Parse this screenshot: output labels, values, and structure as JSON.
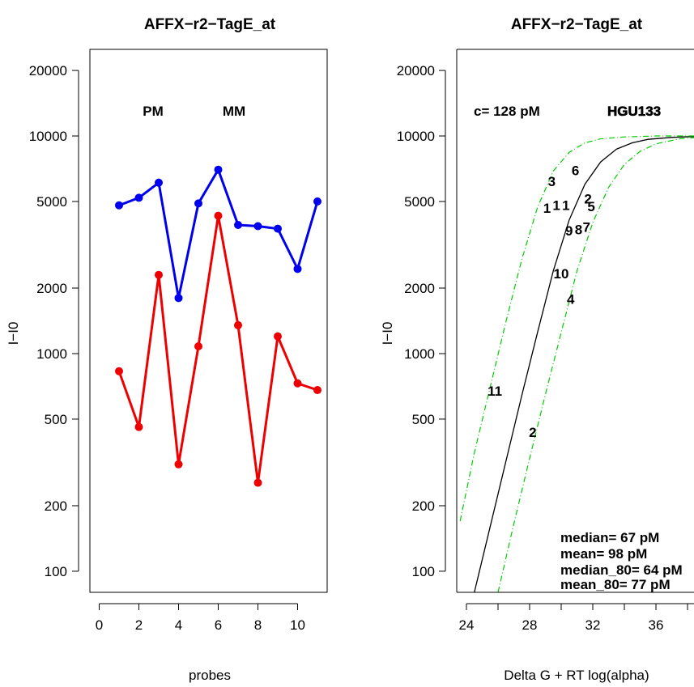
{
  "chart_data": [
    {
      "type": "line",
      "title": "AFFX−r2−TagE_at",
      "xlabel": "probes",
      "ylabel": "I−I0",
      "log_y": true,
      "xlim": [
        0,
        11
      ],
      "xticks": [
        "0",
        "2",
        "4",
        "6",
        "8",
        "10"
      ],
      "ylim": [
        80,
        25000
      ],
      "yticks": [
        "100",
        "200",
        "500",
        "1000",
        "2000",
        "5000",
        "10000",
        "20000"
      ],
      "x": [
        1,
        2,
        3,
        4,
        5,
        6,
        7,
        8,
        9,
        10,
        11
      ],
      "series": [
        {
          "name": "PM",
          "color": "#0000ee",
          "values": [
            4800,
            5200,
            6100,
            1800,
            4900,
            7000,
            3900,
            3850,
            3750,
            2450,
            5000
          ]
        },
        {
          "name": "MM",
          "color": "#ee0000",
          "values": [
            830,
            460,
            2300,
            310,
            1080,
            4300,
            1350,
            255,
            1200,
            730,
            680
          ]
        }
      ],
      "legend": [
        "PM",
        "MM"
      ]
    },
    {
      "type": "scatter",
      "title": "AFFX−r2−TagE_at",
      "xlabel": "Delta G + RT log(alpha)",
      "ylabel": "I−I0",
      "log_y": true,
      "xlim": [
        23.6,
        40
      ],
      "xticks": [
        "24",
        "28",
        "32",
        "36"
      ],
      "ylim": [
        80,
        25000
      ],
      "yticks": [
        "100",
        "200",
        "500",
        "1000",
        "2000",
        "5000",
        "10000",
        "20000"
      ],
      "annotations": {
        "concentration": "c= 128  pM",
        "chip": "HGU133",
        "stats": [
          "median= 67 pM",
          "mean= 98 pM",
          "median_80= 64 pM",
          "mean_80= 77 pM"
        ]
      },
      "points": [
        {
          "label": "1",
          "x": 29.1,
          "y": 4700,
          "color": "#0000ee"
        },
        {
          "label": "1",
          "x": 29.7,
          "y": 4850,
          "color": "#0000ee"
        },
        {
          "label": "1",
          "x": 30.3,
          "y": 4850,
          "color": "#0000ee"
        },
        {
          "label": "2",
          "x": 31.7,
          "y": 5200,
          "color": "#0000ee"
        },
        {
          "label": "3",
          "x": 29.4,
          "y": 6250,
          "color": "#0000ee"
        },
        {
          "label": "4",
          "x": 30.6,
          "y": 1800,
          "color": "#0000ee"
        },
        {
          "label": "5",
          "x": 31.9,
          "y": 4800,
          "color": "#0000ee"
        },
        {
          "label": "6",
          "x": 30.9,
          "y": 7000,
          "color": "#0000ee"
        },
        {
          "label": "7",
          "x": 31.6,
          "y": 3850,
          "color": "#0000ee"
        },
        {
          "label": "8",
          "x": 31.1,
          "y": 3750,
          "color": "#0000ee"
        },
        {
          "label": "9",
          "x": 30.5,
          "y": 3700,
          "color": "#0000ee"
        },
        {
          "label": "10",
          "x": 30.0,
          "y": 2350,
          "color": "#0000ee"
        },
        {
          "label": "11",
          "x": 25.8,
          "y": 680,
          "color": "#ee0000"
        },
        {
          "label": "2",
          "x": 28.2,
          "y": 440,
          "color": "#ee0000"
        }
      ],
      "curves": [
        {
          "name": "fit",
          "style": "solid",
          "color": "#000000",
          "points": [
            [
              24.5,
              80
            ],
            [
              25.5,
              160
            ],
            [
              26.5,
              320
            ],
            [
              27.5,
              640
            ],
            [
              28.5,
              1250
            ],
            [
              29.5,
              2400
            ],
            [
              30.5,
              4100
            ],
            [
              31.5,
              6000
            ],
            [
              32.5,
              7600
            ],
            [
              33.5,
              8700
            ],
            [
              34.5,
              9300
            ],
            [
              35.5,
              9650
            ],
            [
              37,
              9850
            ],
            [
              38.5,
              9950
            ],
            [
              40,
              10000
            ]
          ]
        },
        {
          "name": "upper",
          "style": "dashdot",
          "color": "#00cc00",
          "points": [
            [
              23.6,
              170
            ],
            [
              24.5,
              350
            ],
            [
              25.5,
              700
            ],
            [
              26.5,
              1400
            ],
            [
              27.5,
              2700
            ],
            [
              28.5,
              4700
            ],
            [
              29.5,
              6900
            ],
            [
              30.5,
              8400
            ],
            [
              31.5,
              9300
            ],
            [
              32.5,
              9700
            ],
            [
              34,
              9900
            ],
            [
              36,
              10000
            ],
            [
              40,
              10000
            ]
          ]
        },
        {
          "name": "lower",
          "style": "dashdot",
          "color": "#00cc00",
          "points": [
            [
              26.0,
              80
            ],
            [
              27.0,
              165
            ],
            [
              28.0,
              330
            ],
            [
              29.0,
              650
            ],
            [
              30.0,
              1250
            ],
            [
              31.0,
              2400
            ],
            [
              32.0,
              4000
            ],
            [
              33.0,
              5800
            ],
            [
              34.0,
              7400
            ],
            [
              35.0,
              8500
            ],
            [
              36.0,
              9200
            ],
            [
              37.5,
              9700
            ],
            [
              39,
              9900
            ],
            [
              40,
              9950
            ]
          ]
        }
      ]
    }
  ]
}
